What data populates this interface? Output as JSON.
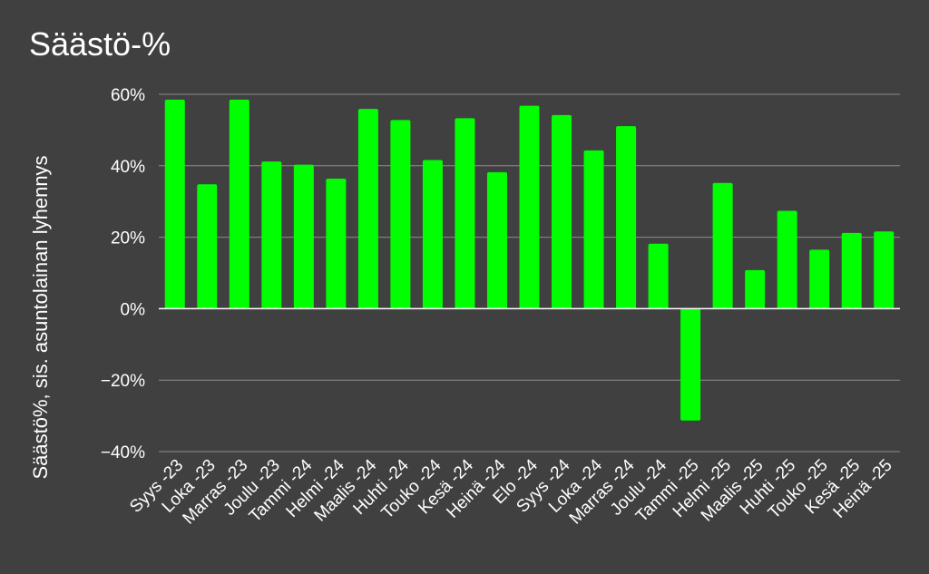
{
  "chart_data": {
    "type": "bar",
    "title": "Säästö-%",
    "ylabel": "Säästö%, sis. asuntolainan lyhennys",
    "xlabel": "",
    "ylim": [
      -40,
      60
    ],
    "yticks": [
      60,
      40,
      20,
      0,
      -20,
      -40
    ],
    "ytick_labels": [
      "60%",
      "40%",
      "20%",
      "0%",
      "−20%",
      "−40%"
    ],
    "grid": true,
    "bar_color": "#00ff00",
    "background_color": "#404040",
    "categories": [
      "Syys -23",
      "Loka -23",
      "Marras -23",
      "Joulu -23",
      "Tammi -24",
      "Helmi -24",
      "Maalis -24",
      "Huhti -24",
      "Touko -24",
      "Kesä -24",
      "Heinä -24",
      "Elo -24",
      "Syys -24",
      "Loka -24",
      "Marras -24",
      "Joulu -24",
      "Tammi -25",
      "Helmi -25",
      "Maalis -25",
      "Huhti -25",
      "Touko -25",
      "Kesä -25",
      "Heinä -25"
    ],
    "values": [
      58.5,
      34.8,
      58.5,
      41.2,
      40.3,
      36.4,
      55.9,
      52.8,
      41.6,
      53.3,
      38.2,
      56.8,
      54.2,
      44.3,
      51.1,
      18.2,
      -31.3,
      35.2,
      10.8,
      27.4,
      16.5,
      21.2,
      21.6
    ]
  }
}
